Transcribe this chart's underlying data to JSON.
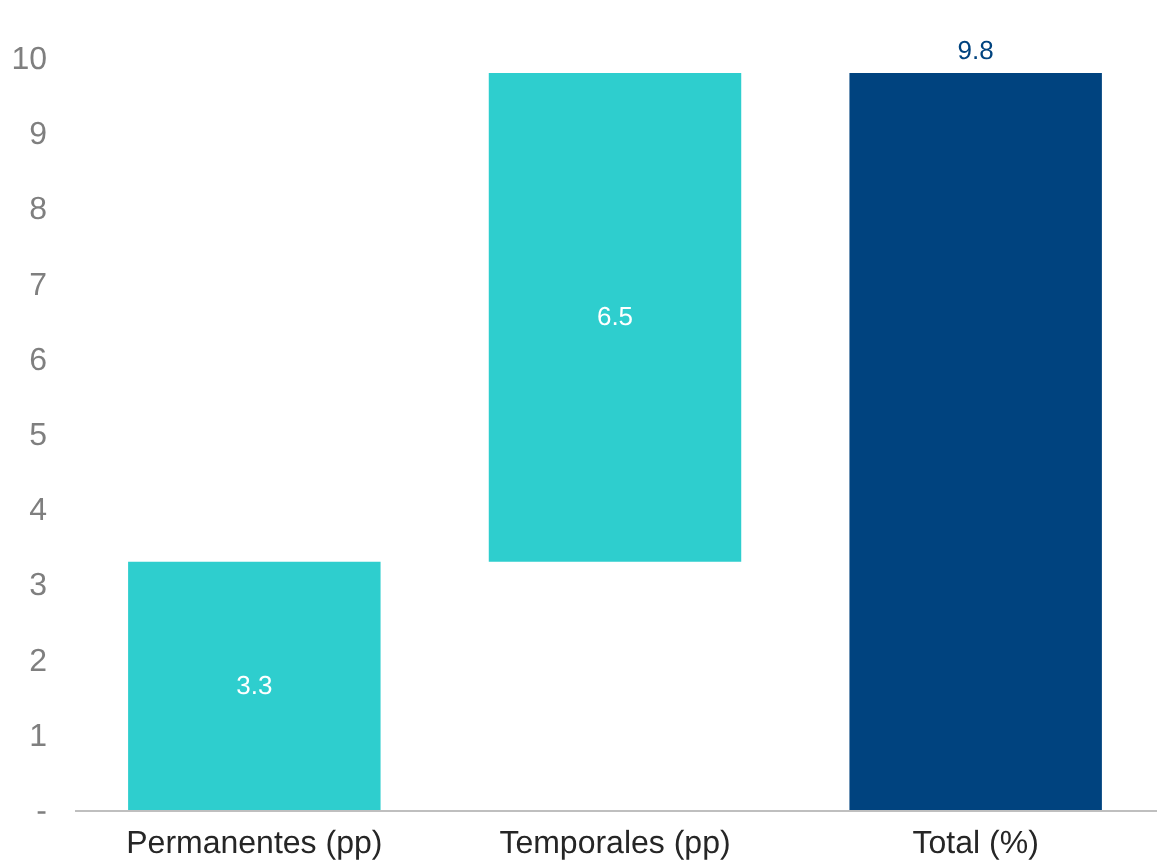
{
  "chart_data": {
    "type": "bar",
    "categories": [
      "Permanentes (pp)",
      "Temporales (pp)",
      "Total (%)"
    ],
    "values": [
      3.3,
      6.5,
      9.8
    ],
    "base": [
      0,
      3.3,
      0
    ],
    "colors": [
      "#2ecece",
      "#2ecece",
      "#00437f"
    ],
    "ylim": [
      0,
      10
    ],
    "yticks": [
      {
        "value": 0,
        "label": "-"
      },
      1,
      2,
      3,
      4,
      5,
      6,
      7,
      8,
      9,
      10
    ],
    "data_labels": true,
    "grid": false
  }
}
